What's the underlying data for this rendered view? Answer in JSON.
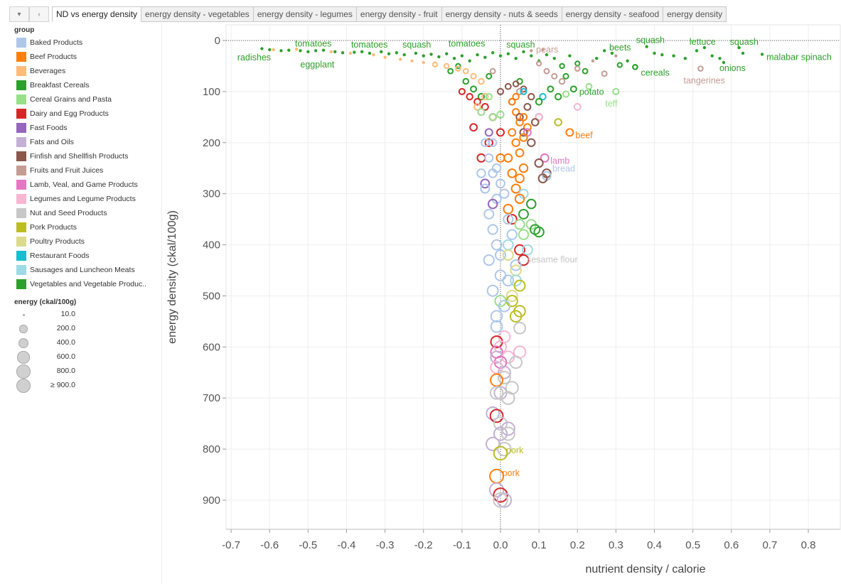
{
  "tabs": {
    "controls": [
      "▾",
      "‹"
    ],
    "items": [
      "ND vs energy density",
      "energy density - vegetables",
      "energy density - legumes",
      "energy density - fruit",
      "energy density - nuts & seeds",
      "energy density - seafood",
      "energy density"
    ],
    "active": 0
  },
  "legend": {
    "title": "group",
    "items": [
      {
        "label": "Baked Products",
        "color": "#aec7e8"
      },
      {
        "label": "Beef Products",
        "color": "#ff7f0e"
      },
      {
        "label": "Beverages",
        "color": "#ffbb78"
      },
      {
        "label": "Breakfast Cereals",
        "color": "#2ca02c"
      },
      {
        "label": "Cereal Grains and Pasta",
        "color": "#98df8a"
      },
      {
        "label": "Dairy and Egg Products",
        "color": "#d62728"
      },
      {
        "label": "Fast Foods",
        "color": "#9467bd"
      },
      {
        "label": "Fats and Oils",
        "color": "#c5b0d5"
      },
      {
        "label": "Finfish and Shellfish Products",
        "color": "#8c564b"
      },
      {
        "label": "Fruits and Fruit Juices",
        "color": "#c49c94"
      },
      {
        "label": "Lamb, Veal, and Game Products",
        "color": "#e377c2"
      },
      {
        "label": "Legumes and Legume Products",
        "color": "#f7b6d2"
      },
      {
        "label": "Nut and Seed Products",
        "color": "#c7c7c7"
      },
      {
        "label": "Pork Products",
        "color": "#bcbd22"
      },
      {
        "label": "Poultry Products",
        "color": "#dbdb8d"
      },
      {
        "label": "Restaurant Foods",
        "color": "#17becf"
      },
      {
        "label": "Sausages and Luncheon Meats",
        "color": "#9edae5"
      },
      {
        "label": "Vegetables and Vegetable Produc..",
        "color": "#2ca02c"
      }
    ],
    "size_title": "energy (ckal/100g)",
    "size_items": [
      {
        "label": "10.0",
        "value": 10
      },
      {
        "label": "200.0",
        "value": 200
      },
      {
        "label": "400.0",
        "value": 400
      },
      {
        "label": "600.0",
        "value": 600
      },
      {
        "label": "800.0",
        "value": 800
      },
      {
        "label": "≥ 900.0",
        "value": 900
      }
    ]
  },
  "chart_data": {
    "type": "scatter",
    "xlabel": "nutrient density / calorie",
    "ylabel": "energy density (ckal/100g)",
    "xlim": [
      -0.72,
      0.88
    ],
    "ylim": [
      960,
      -30
    ],
    "y_reversed": true,
    "xticks": [
      -0.7,
      -0.6,
      -0.5,
      -0.4,
      -0.3,
      -0.2,
      -0.1,
      0.0,
      0.1,
      0.2,
      0.3,
      0.4,
      0.5,
      0.6,
      0.7,
      0.8
    ],
    "xtick_labels": [
      "-0.7",
      "-0.6",
      "-0.5",
      "-0.4",
      "-0.3",
      "-0.2",
      "-0.1",
      "0.0",
      "0.1",
      "0.2",
      "0.3",
      "0.4",
      "0.5",
      "0.6",
      "0.7",
      "0.8"
    ],
    "yticks": [
      0,
      100,
      200,
      300,
      400,
      500,
      600,
      700,
      800,
      900
    ],
    "ytick_labels": [
      "0",
      "100",
      "200",
      "300",
      "400",
      "500",
      "600",
      "700",
      "800",
      "900"
    ],
    "grid": true,
    "reference_lines": {
      "x": 0,
      "y": 0
    },
    "size_by": "energy (ckal/100g)",
    "color_by": "group",
    "points": [
      [
        -0.62,
        16,
        17
      ],
      [
        -0.6,
        18,
        17
      ],
      [
        -0.57,
        20,
        17
      ],
      [
        -0.55,
        19,
        17
      ],
      [
        -0.52,
        20,
        17
      ],
      [
        -0.5,
        22,
        17
      ],
      [
        -0.48,
        20,
        17
      ],
      [
        -0.46,
        19,
        17
      ],
      [
        -0.43,
        22,
        17
      ],
      [
        -0.41,
        24,
        17
      ],
      [
        -0.38,
        23,
        17
      ],
      [
        -0.36,
        22,
        17
      ],
      [
        -0.34,
        25,
        17
      ],
      [
        -0.31,
        22,
        17
      ],
      [
        -0.29,
        26,
        17
      ],
      [
        -0.27,
        24,
        17
      ],
      [
        -0.25,
        28,
        17
      ],
      [
        -0.22,
        25,
        17
      ],
      [
        -0.2,
        30,
        17
      ],
      [
        -0.18,
        27,
        17
      ],
      [
        -0.16,
        32,
        17
      ],
      [
        -0.14,
        26,
        17
      ],
      [
        -0.12,
        35,
        17
      ],
      [
        -0.1,
        30,
        17
      ],
      [
        -0.08,
        40,
        17
      ],
      [
        -0.06,
        28,
        17
      ],
      [
        -0.04,
        33,
        17
      ],
      [
        -0.02,
        24,
        17
      ],
      [
        0.0,
        30,
        17
      ],
      [
        0.02,
        26,
        17
      ],
      [
        0.04,
        35,
        17
      ],
      [
        0.06,
        22,
        17
      ],
      [
        0.08,
        30,
        17
      ],
      [
        0.1,
        40,
        17
      ],
      [
        0.12,
        28,
        17
      ],
      [
        0.14,
        35,
        17
      ],
      [
        0.16,
        50,
        17
      ],
      [
        0.18,
        30,
        17
      ],
      [
        0.2,
        45,
        17
      ],
      [
        0.22,
        60,
        17
      ],
      [
        0.25,
        35,
        17
      ],
      [
        0.27,
        20,
        17
      ],
      [
        0.29,
        25,
        17
      ],
      [
        0.31,
        48,
        17
      ],
      [
        0.33,
        40,
        17
      ],
      [
        0.35,
        52,
        17
      ],
      [
        0.38,
        12,
        17
      ],
      [
        0.4,
        25,
        17
      ],
      [
        0.42,
        28,
        17
      ],
      [
        0.45,
        30,
        17
      ],
      [
        0.48,
        35,
        17
      ],
      [
        0.51,
        20,
        17
      ],
      [
        0.53,
        14,
        17
      ],
      [
        0.55,
        30,
        17
      ],
      [
        0.57,
        35,
        17
      ],
      [
        0.58,
        43,
        17
      ],
      [
        0.62,
        14,
        17
      ],
      [
        0.63,
        25,
        17
      ],
      [
        0.68,
        27,
        17
      ],
      [
        -0.09,
        80,
        17
      ],
      [
        -0.07,
        95,
        17
      ],
      [
        -0.05,
        110,
        17
      ],
      [
        -0.03,
        70,
        17
      ],
      [
        0.05,
        80,
        17
      ],
      [
        0.1,
        120,
        17
      ],
      [
        0.13,
        95,
        17
      ],
      [
        0.15,
        110,
        17
      ],
      [
        0.19,
        95,
        17
      ],
      [
        0.17,
        70,
        17
      ],
      [
        -0.13,
        60,
        17
      ],
      [
        -0.11,
        50,
        17
      ],
      [
        -0.59,
        18,
        2
      ],
      [
        -0.53,
        17,
        2
      ],
      [
        -0.44,
        22,
        2
      ],
      [
        -0.39,
        25,
        2
      ],
      [
        -0.33,
        28,
        2
      ],
      [
        -0.3,
        33,
        2
      ],
      [
        -0.26,
        37,
        2
      ],
      [
        -0.23,
        40,
        2
      ],
      [
        -0.2,
        43,
        2
      ],
      [
        -0.17,
        47,
        2
      ],
      [
        -0.14,
        50,
        2
      ],
      [
        -0.11,
        55,
        2
      ],
      [
        -0.09,
        60,
        2
      ],
      [
        -0.07,
        70,
        2
      ],
      [
        -0.05,
        80,
        2
      ],
      [
        -0.04,
        110,
        2
      ],
      [
        -0.06,
        130,
        2
      ],
      [
        0.08,
        20,
        9
      ],
      [
        0.1,
        45,
        9
      ],
      [
        0.12,
        60,
        9
      ],
      [
        0.14,
        70,
        9
      ],
      [
        0.16,
        80,
        9
      ],
      [
        0.2,
        55,
        9
      ],
      [
        0.24,
        40,
        9
      ],
      [
        0.27,
        65,
        9
      ],
      [
        0.3,
        30,
        9
      ],
      [
        0.52,
        55,
        9
      ],
      [
        0.11,
        18,
        9
      ],
      [
        -0.02,
        60,
        9
      ],
      [
        0.05,
        100,
        9
      ],
      [
        0.0,
        100,
        8
      ],
      [
        0.02,
        90,
        8
      ],
      [
        0.04,
        85,
        8
      ],
      [
        0.06,
        95,
        8
      ],
      [
        0.08,
        110,
        8
      ],
      [
        0.03,
        120,
        8
      ],
      [
        0.07,
        130,
        8
      ],
      [
        0.05,
        150,
        8
      ],
      [
        0.09,
        160,
        8
      ],
      [
        0.1,
        150,
        8
      ],
      [
        0.08,
        200,
        8
      ],
      [
        0.1,
        240,
        8
      ],
      [
        0.11,
        270,
        8
      ],
      [
        0.06,
        180,
        8
      ],
      [
        0.12,
        260,
        8
      ],
      [
        -0.1,
        100,
        5
      ],
      [
        -0.08,
        110,
        5
      ],
      [
        -0.06,
        120,
        5
      ],
      [
        -0.04,
        130,
        5
      ],
      [
        -0.07,
        170,
        5
      ],
      [
        -0.03,
        200,
        5
      ],
      [
        -0.05,
        230,
        5
      ],
      [
        0.0,
        180,
        5
      ],
      [
        0.05,
        410,
        5
      ],
      [
        0.06,
        430,
        5
      ],
      [
        -0.01,
        590,
        5
      ],
      [
        -0.01,
        735,
        5
      ],
      [
        0.0,
        890,
        5
      ],
      [
        0.03,
        350,
        5
      ],
      [
        -0.02,
        150,
        5
      ],
      [
        0.03,
        120,
        1
      ],
      [
        0.04,
        140,
        1
      ],
      [
        0.05,
        160,
        1
      ],
      [
        0.03,
        180,
        1
      ],
      [
        0.04,
        200,
        1
      ],
      [
        0.05,
        220,
        1
      ],
      [
        0.06,
        150,
        1
      ],
      [
        0.06,
        250,
        1
      ],
      [
        0.03,
        260,
        1
      ],
      [
        0.04,
        290,
        1
      ],
      [
        0.05,
        310,
        1
      ],
      [
        0.02,
        330,
        1
      ],
      [
        0.06,
        190,
        1
      ],
      [
        0.07,
        170,
        1
      ],
      [
        0.02,
        230,
        1
      ],
      [
        0.05,
        270,
        1
      ],
      [
        0.18,
        180,
        1
      ],
      [
        -0.01,
        665,
        1
      ],
      [
        -0.01,
        853,
        1
      ],
      [
        0.04,
        110,
        1
      ],
      [
        0.0,
        230,
        1
      ],
      [
        -0.04,
        200,
        0
      ],
      [
        -0.03,
        230,
        0
      ],
      [
        -0.02,
        260,
        0
      ],
      [
        -0.04,
        290,
        0
      ],
      [
        -0.01,
        310,
        0
      ],
      [
        -0.03,
        340,
        0
      ],
      [
        -0.02,
        370,
        0
      ],
      [
        -0.01,
        400,
        0
      ],
      [
        -0.03,
        430,
        0
      ],
      [
        0.0,
        460,
        0
      ],
      [
        -0.02,
        490,
        0
      ],
      [
        0.01,
        520,
        0
      ],
      [
        -0.01,
        540,
        0
      ],
      [
        0.02,
        350,
        0
      ],
      [
        0.0,
        280,
        0
      ],
      [
        0.12,
        265,
        0
      ],
      [
        0.04,
        440,
        0
      ],
      [
        0.03,
        380,
        0
      ],
      [
        -0.01,
        250,
        0
      ],
      [
        0.01,
        300,
        0
      ],
      [
        -0.05,
        260,
        0
      ],
      [
        0.0,
        420,
        0
      ],
      [
        0.02,
        470,
        0
      ],
      [
        -0.02,
        200,
        0
      ],
      [
        -0.01,
        560,
        0
      ],
      [
        -0.05,
        140,
        4
      ],
      [
        -0.02,
        150,
        4
      ],
      [
        0.0,
        145,
        4
      ],
      [
        0.3,
        100,
        4
      ],
      [
        0.23,
        90,
        4
      ],
      [
        0.05,
        360,
        4
      ],
      [
        0.08,
        360,
        4
      ],
      [
        0.06,
        380,
        4
      ],
      [
        0.0,
        510,
        4
      ],
      [
        -0.03,
        110,
        4
      ],
      [
        0.17,
        105,
        4
      ],
      [
        0.35,
        52,
        3
      ],
      [
        0.08,
        320,
        3
      ],
      [
        0.09,
        370,
        3
      ],
      [
        0.1,
        375,
        3
      ],
      [
        0.06,
        340,
        3
      ],
      [
        -0.04,
        280,
        6
      ],
      [
        -0.03,
        180,
        6
      ],
      [
        -0.02,
        320,
        6
      ],
      [
        -0.01,
        620,
        7
      ],
      [
        0.0,
        690,
        7
      ],
      [
        -0.02,
        730,
        7
      ],
      [
        0.0,
        770,
        7
      ],
      [
        -0.02,
        790,
        7
      ],
      [
        -0.01,
        880,
        7
      ],
      [
        0.01,
        900,
        7
      ],
      [
        0.02,
        760,
        7
      ],
      [
        0.01,
        650,
        7
      ],
      [
        0.115,
        230,
        10
      ],
      [
        0.0,
        630,
        10
      ],
      [
        -0.01,
        610,
        10
      ],
      [
        0.07,
        180,
        10
      ],
      [
        0.0,
        600,
        11
      ],
      [
        0.02,
        620,
        11
      ],
      [
        -0.01,
        640,
        11
      ],
      [
        0.05,
        610,
        11
      ],
      [
        0.2,
        130,
        11
      ],
      [
        0.1,
        150,
        11
      ],
      [
        0.01,
        580,
        11
      ],
      [
        0.05,
        563,
        12
      ],
      [
        0.01,
        660,
        12
      ],
      [
        0.02,
        700,
        12
      ],
      [
        0.0,
        750,
        12
      ],
      [
        0.02,
        770,
        12
      ],
      [
        0.01,
        800,
        12
      ],
      [
        0.03,
        680,
        12
      ],
      [
        -0.01,
        690,
        12
      ],
      [
        0.0,
        900,
        12
      ],
      [
        0.04,
        630,
        12
      ],
      [
        0.04,
        540,
        13
      ],
      [
        0.05,
        530,
        13
      ],
      [
        0.03,
        510,
        13
      ],
      [
        0.0,
        808,
        13
      ],
      [
        0.15,
        160,
        13
      ],
      [
        0.05,
        480,
        13
      ],
      [
        0.03,
        500,
        14
      ],
      [
        0.04,
        450,
        14
      ],
      [
        0.02,
        420,
        14
      ],
      [
        0.06,
        100,
        15
      ],
      [
        0.11,
        110,
        15
      ],
      [
        0.06,
        300,
        16
      ],
      [
        0.04,
        470,
        16
      ],
      [
        0.07,
        410,
        16
      ],
      [
        0.02,
        400,
        16
      ]
    ],
    "annotations": [
      {
        "text": "radishes",
        "x": -0.61,
        "y": 17,
        "color": "#2ca02c"
      },
      {
        "text": "tomatoes",
        "x": -0.46,
        "y": 20,
        "color": "#2ca02c"
      },
      {
        "text": "eggplant",
        "x": -0.45,
        "y": 25,
        "color": "#2ca02c"
      },
      {
        "text": "tomatoes",
        "x": -0.34,
        "y": 22,
        "color": "#2ca02c"
      },
      {
        "text": "squash",
        "x": -0.24,
        "y": 22,
        "color": "#2ca02c"
      },
      {
        "text": "tomatoes",
        "x": -0.05,
        "y": 20,
        "color": "#2ca02c"
      },
      {
        "text": "squash",
        "x": 0.03,
        "y": 22,
        "color": "#2ca02c"
      },
      {
        "text": "pears",
        "x": 0.1,
        "y": 18,
        "color": "#c49c94"
      },
      {
        "text": "beets",
        "x": 0.29,
        "y": 25,
        "color": "#2ca02c"
      },
      {
        "text": "squash",
        "x": 0.38,
        "y": 12,
        "color": "#2ca02c"
      },
      {
        "text": "lettuce",
        "x": 0.53,
        "y": 14,
        "color": "#2ca02c"
      },
      {
        "text": "squash",
        "x": 0.62,
        "y": 14,
        "color": "#2ca02c"
      },
      {
        "text": "malabar spinach",
        "x": 0.68,
        "y": 27,
        "color": "#2ca02c"
      },
      {
        "text": "onions",
        "x": 0.58,
        "y": 43,
        "color": "#2ca02c"
      },
      {
        "text": "cereals",
        "x": 0.35,
        "y": 52,
        "color": "#2ca02c"
      },
      {
        "text": "tangerines",
        "x": 0.52,
        "y": 55,
        "color": "#c49c94"
      },
      {
        "text": "potato",
        "x": 0.19,
        "y": 95,
        "color": "#2ca02c"
      },
      {
        "text": "teff",
        "x": 0.3,
        "y": 100,
        "color": "#98df8a"
      },
      {
        "text": "beef",
        "x": 0.18,
        "y": 180,
        "color": "#ff7f0e"
      },
      {
        "text": "lamb",
        "x": 0.115,
        "y": 230,
        "color": "#e377c2"
      },
      {
        "text": "bread",
        "x": 0.12,
        "y": 265,
        "color": "#aec7e8"
      },
      {
        "text": "sesame flour",
        "x": 0.05,
        "y": 563,
        "color": "#c7c7c7"
      },
      {
        "text": "pork",
        "x": 0.0,
        "y": 808,
        "color": "#bcbd22"
      },
      {
        "text": "pork",
        "x": -0.01,
        "y": 853,
        "color": "#ff7f0e"
      }
    ]
  }
}
